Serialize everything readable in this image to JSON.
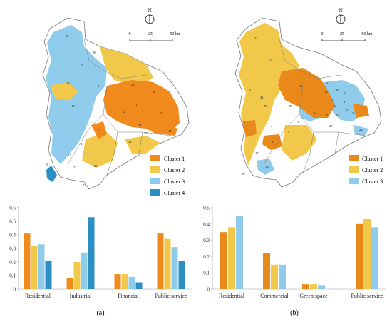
{
  "colors": {
    "cluster1": "#F08A1C",
    "cluster2": "#F2C84B",
    "cluster3": "#8FCBEA",
    "cluster4": "#2B8FC3",
    "cluster1_right": "#E8891A",
    "map_outline": "#777777"
  },
  "north_label": "N",
  "scale_ticks": [
    "0",
    "25",
    "50 km"
  ],
  "panels": [
    {
      "label": "(a)",
      "legend": [
        "Cluster 1",
        "Cluster 2",
        "Cluster 3",
        "Cluster 4"
      ],
      "district_numbers": [
        "1",
        "2",
        "3",
        "4",
        "5",
        "6",
        "7",
        "8",
        "9",
        "10",
        "11",
        "12",
        "13",
        "14",
        "15",
        "16",
        "17",
        "18",
        "19",
        "20",
        "21",
        "22",
        "23",
        "24",
        "25",
        "26",
        "27",
        "28",
        "29",
        "30",
        "31"
      ]
    },
    {
      "label": "(b)",
      "legend": [
        "Cluster 1",
        "Cluster 2",
        "Cluster 3"
      ],
      "district_numbers": [
        "1",
        "2",
        "3",
        "4",
        "5",
        "6",
        "7",
        "8",
        "9",
        "10",
        "11",
        "12",
        "13",
        "14",
        "15",
        "16",
        "17",
        "18",
        "19",
        "20",
        "21",
        "22",
        "23",
        "24",
        "25",
        "26",
        "27",
        "28",
        "29",
        "30",
        "31"
      ]
    }
  ],
  "chart_data": [
    {
      "type": "bar",
      "categories": [
        "Residential",
        "Industrial",
        "Financial",
        "Public service"
      ],
      "series": [
        {
          "name": "Cluster 1",
          "values": [
            0.41,
            0.08,
            0.11,
            0.41
          ]
        },
        {
          "name": "Cluster 2",
          "values": [
            0.32,
            0.2,
            0.11,
            0.37
          ]
        },
        {
          "name": "Cluster 3",
          "values": [
            0.33,
            0.27,
            0.09,
            0.31
          ]
        },
        {
          "name": "Cluster 4",
          "values": [
            0.21,
            0.53,
            0.05,
            0.21
          ]
        }
      ],
      "ylim": [
        0,
        0.6
      ],
      "yticks": [
        "0",
        "0.1",
        "0.2",
        "0.3",
        "0.4",
        "0.5",
        "0.6"
      ],
      "grid": false
    },
    {
      "type": "bar",
      "categories": [
        "Residential",
        "Commercial",
        "Green space",
        "Public service"
      ],
      "series": [
        {
          "name": "Cluster 1",
          "values": [
            0.35,
            0.22,
            0.03,
            0.4
          ]
        },
        {
          "name": "Cluster 2",
          "values": [
            0.38,
            0.15,
            0.03,
            0.43
          ]
        },
        {
          "name": "Cluster 3",
          "values": [
            0.45,
            0.15,
            0.025,
            0.38
          ]
        }
      ],
      "ylim": [
        0,
        0.5
      ],
      "yticks": [
        "0",
        "0.1",
        "0.2",
        "0.3",
        "0.4",
        "0.5"
      ],
      "grid": false
    }
  ]
}
